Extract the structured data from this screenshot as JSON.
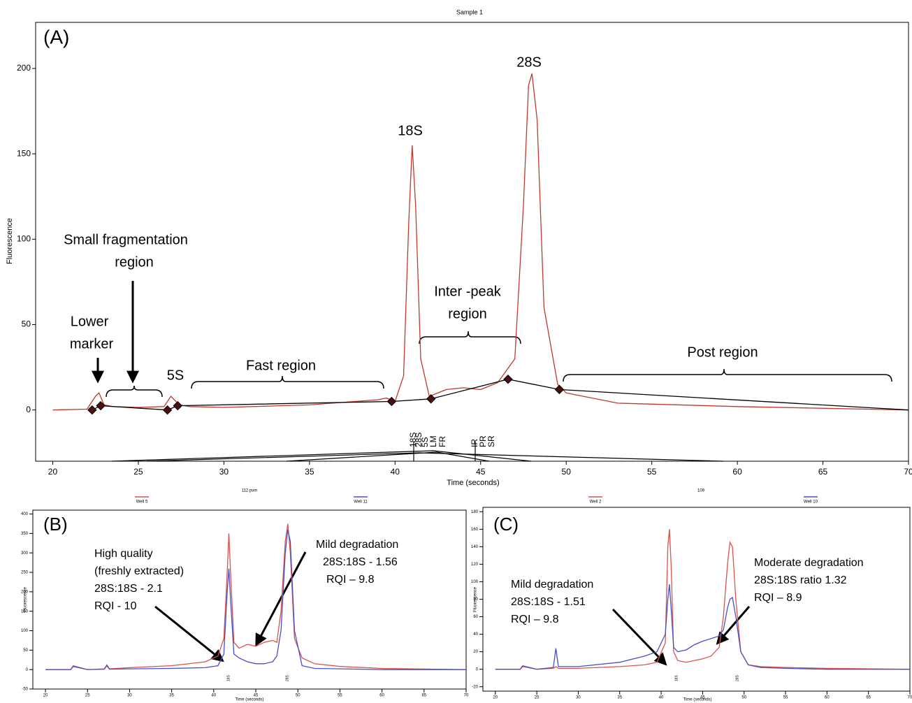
{
  "chart_data": [
    {
      "type": "line",
      "title": "Sample 1",
      "xlabel": "Time (seconds)",
      "ylabel": "Fluorescence",
      "xlim": [
        19,
        70
      ],
      "ylim": [
        -30,
        227
      ],
      "xticks": [
        20,
        25,
        30,
        35,
        40,
        45,
        50,
        55,
        60,
        65,
        70
      ],
      "yticks": [
        0,
        50,
        100,
        150,
        200
      ],
      "series": [
        {
          "color": "#c0392b",
          "x": [
            20,
            22,
            22.5,
            22.7,
            23,
            23.5,
            25,
            26.5,
            26.9,
            27.1,
            27.4,
            28,
            30,
            35,
            39,
            39.5,
            40,
            40.5,
            40.8,
            41,
            41.2,
            41.5,
            42,
            43,
            44,
            45,
            46,
            47,
            47.5,
            47.8,
            48,
            48.3,
            48.7,
            49.5,
            50,
            51,
            53,
            60,
            70
          ],
          "values": [
            0,
            0.5,
            8,
            10,
            3,
            2,
            1.5,
            2,
            8,
            6,
            3,
            2,
            1.5,
            3,
            6,
            7,
            5,
            20,
            110,
            155,
            120,
            30,
            8,
            12,
            13,
            12,
            16,
            30,
            120,
            190,
            197,
            170,
            60,
            15,
            10,
            8,
            4,
            2,
            0
          ]
        },
        {
          "color": "#000000",
          "marker": "diamond",
          "x": [
            22.3,
            22.8,
            26.7,
            27.3,
            39.8,
            42.1,
            46.6,
            49.6,
            70
          ],
          "values": [
            0,
            2.5,
            0,
            2.5,
            5,
            6.5,
            18,
            12,
            0
          ]
        }
      ],
      "annotations": [
        "(A)",
        "Small fragmentation",
        "region",
        "Lower",
        "marker",
        "5S",
        "Fast region",
        "18S",
        "Inter -peak",
        "region",
        "28S",
        "Post region"
      ],
      "peak_labels": [
        {
          "label": "18S",
          "color": "#2b7bba"
        },
        {
          "label": "28S",
          "color": "#888888"
        },
        {
          "label": "5S",
          "color": "#2ecc71"
        },
        {
          "label": "LM",
          "color": "#000000"
        },
        {
          "label": "FR",
          "color": "#000000"
        },
        {
          "label": "IR",
          "color": "#000000"
        },
        {
          "label": "PR",
          "color": "#000000"
        },
        {
          "label": "SR",
          "color": "#000000"
        }
      ]
    },
    {
      "type": "line",
      "subtitle": "112 pvm",
      "xlabel": "Time (seconds)",
      "ylabel": "Fluorescence",
      "xlim": [
        18.5,
        70
      ],
      "ylim": [
        -50,
        410
      ],
      "xticks": [
        20,
        25,
        30,
        35,
        40,
        45,
        50,
        55,
        60,
        65,
        70
      ],
      "yticks": [
        -50,
        0,
        50,
        100,
        150,
        200,
        250,
        300,
        350,
        400
      ],
      "series": [
        {
          "name": "Well 5",
          "color": "#d9534f",
          "x": [
            20,
            22,
            23,
            23.3,
            25,
            27,
            27.3,
            27.6,
            30,
            35,
            39,
            40.5,
            41.2,
            41.6,
            41.8,
            42,
            42.4,
            43,
            44,
            45,
            46,
            47,
            47.5,
            48,
            48.5,
            48.8,
            49.1,
            49.6,
            50.5,
            52,
            55,
            60,
            70
          ],
          "values": [
            0,
            0,
            0,
            10,
            0,
            2,
            12,
            2,
            5,
            10,
            20,
            35,
            80,
            250,
            350,
            250,
            70,
            55,
            65,
            60,
            70,
            75,
            70,
            150,
            330,
            375,
            300,
            80,
            30,
            15,
            8,
            3,
            0
          ]
        },
        {
          "name": "Well 11",
          "color": "#4a4fc4",
          "x": [
            20,
            22,
            23,
            23.3,
            25,
            27,
            27.3,
            27.6,
            30,
            35,
            39,
            40.5,
            41.2,
            41.6,
            41.8,
            42,
            42.4,
            43,
            44,
            45,
            46,
            47,
            47.5,
            48,
            48.5,
            48.8,
            49.1,
            49.6,
            50.5,
            52,
            55,
            60,
            70
          ],
          "values": [
            0,
            0,
            0,
            8,
            0,
            1,
            10,
            1,
            2,
            3,
            5,
            10,
            40,
            200,
            260,
            180,
            40,
            30,
            20,
            15,
            15,
            20,
            35,
            100,
            300,
            360,
            330,
            100,
            10,
            3,
            2,
            0,
            0
          ]
        }
      ],
      "annotations": [
        "(B)",
        "High quality",
        "(freshly extracted)",
        "28S:18S - 2.1",
        "RQI - 10",
        "Mild degradation",
        "28S:18S - 1.56",
        "RQI – 9.8"
      ],
      "peak_labels": [
        {
          "label": "18S",
          "color": "#2b7bba"
        },
        {
          "label": "28S",
          "color": "#888888"
        }
      ]
    },
    {
      "type": "line",
      "subtitle": "109",
      "xlabel": "Time (seconds)",
      "ylabel": "Fluorescence",
      "xlim": [
        18.5,
        70
      ],
      "ylim": [
        -25,
        185
      ],
      "xticks": [
        20,
        25,
        30,
        35,
        40,
        45,
        50,
        55,
        60,
        65,
        70
      ],
      "yticks": [
        -20,
        0,
        20,
        40,
        60,
        80,
        100,
        120,
        140,
        160,
        180
      ],
      "series": [
        {
          "name": "Well 2",
          "color": "#d9534f",
          "x": [
            20,
            22,
            23,
            23.3,
            25,
            27,
            27.3,
            27.6,
            30,
            35,
            38,
            39.5,
            40.5,
            40.8,
            41,
            41.2,
            41.5,
            42,
            43,
            44,
            45,
            46,
            47,
            47.5,
            48,
            48.3,
            48.6,
            49,
            49.6,
            50.5,
            52,
            55,
            60,
            70
          ],
          "values": [
            0,
            0,
            0,
            3,
            0,
            1,
            3,
            1,
            1,
            3,
            5,
            8,
            30,
            140,
            160,
            120,
            20,
            10,
            8,
            10,
            12,
            15,
            25,
            60,
            120,
            145,
            140,
            80,
            20,
            5,
            3,
            2,
            1,
            0
          ]
        },
        {
          "name": "Well 10",
          "color": "#4a4fc4",
          "x": [
            20,
            22,
            23,
            23.3,
            25,
            27,
            27.3,
            27.6,
            30,
            35,
            38,
            39.5,
            40.5,
            40.8,
            41,
            41.2,
            41.5,
            42,
            43,
            44,
            45,
            46,
            47,
            47.5,
            48,
            48.3,
            48.6,
            49,
            49.6,
            50.5,
            52,
            55,
            60,
            70
          ],
          "values": [
            0,
            0,
            0,
            4,
            0,
            2,
            24,
            3,
            3,
            8,
            15,
            20,
            40,
            80,
            97,
            70,
            25,
            20,
            22,
            28,
            32,
            35,
            38,
            45,
            70,
            80,
            82,
            60,
            20,
            5,
            2,
            1,
            0,
            0
          ]
        }
      ],
      "annotations": [
        "(C)",
        "Mild degradation",
        "28S:18S - 1.51",
        "RQI – 9.8",
        "Moderate degradation",
        "28S:18S ratio 1.32",
        "RQI – 8.9"
      ],
      "peak_labels": [
        {
          "label": "18S",
          "color": "#2b7bba"
        },
        {
          "label": "28S",
          "color": "#888888"
        }
      ]
    }
  ]
}
